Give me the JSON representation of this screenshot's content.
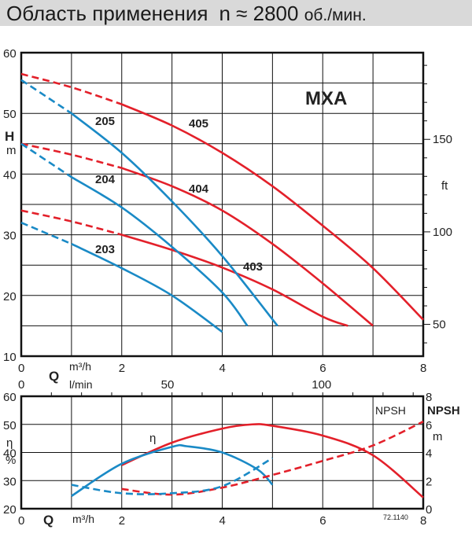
{
  "header": {
    "title": "Область применения",
    "speed": "n ≈ 2800",
    "speed_unit": "об./мин."
  },
  "colors": {
    "red": "#e3202a",
    "blue": "#1a8ac6",
    "grid": "#111"
  },
  "chart_data": [
    {
      "type": "line",
      "model_label": "MXA",
      "ylabel": "H",
      "ylabel_unit": "m",
      "y2label": "ft",
      "xlabel": "Q",
      "xunit": "m³/h",
      "x2unit": "l/min",
      "xlim": [
        0,
        8
      ],
      "ylim": [
        10,
        60
      ],
      "xticks": [
        0,
        2,
        4,
        6,
        8
      ],
      "yticks": [
        10,
        20,
        30,
        40,
        50,
        60
      ],
      "y2ticks": [
        50,
        100,
        150
      ],
      "x2ticks": [
        0,
        50,
        100
      ],
      "grid": true,
      "series": [
        {
          "name": "405",
          "color": "red",
          "dashed_until": 2,
          "points": [
            [
              0,
              56.5
            ],
            [
              1,
              54.3
            ],
            [
              2,
              51.5
            ],
            [
              3,
              48
            ],
            [
              4,
              43.5
            ],
            [
              5,
              38
            ],
            [
              6,
              31.5
            ],
            [
              7,
              24.5
            ],
            [
              8,
              16
            ]
          ]
        },
        {
          "name": "404",
          "color": "red",
          "dashed_until": 2,
          "points": [
            [
              0,
              45
            ],
            [
              1,
              43.2
            ],
            [
              2,
              41
            ],
            [
              3,
              38
            ],
            [
              4,
              34
            ],
            [
              5,
              28.5
            ],
            [
              6,
              22
            ],
            [
              7,
              15
            ]
          ]
        },
        {
          "name": "403",
          "color": "red",
          "dashed_until": 2,
          "points": [
            [
              0,
              34
            ],
            [
              1,
              32.2
            ],
            [
              2,
              30
            ],
            [
              3,
              27.5
            ],
            [
              4,
              24.6
            ],
            [
              5,
              21
            ],
            [
              6,
              16.5
            ],
            [
              6.5,
              15
            ]
          ]
        },
        {
          "name": "205",
          "color": "blue",
          "dashed_until": 1,
          "points": [
            [
              0,
              55.5
            ],
            [
              1,
              50
            ],
            [
              2,
              43.5
            ],
            [
              3,
              35.5
            ],
            [
              4,
              26.5
            ],
            [
              5.1,
              15
            ]
          ]
        },
        {
          "name": "204",
          "color": "blue",
          "dashed_until": 1,
          "points": [
            [
              0,
              45
            ],
            [
              1,
              39.5
            ],
            [
              2,
              34.5
            ],
            [
              3,
              28
            ],
            [
              4,
              20.5
            ],
            [
              4.5,
              15
            ]
          ]
        },
        {
          "name": "203",
          "color": "blue",
          "dashed_until": 1,
          "points": [
            [
              0,
              32
            ],
            [
              1,
              28.5
            ],
            [
              2,
              24.5
            ],
            [
              3,
              20
            ],
            [
              4,
              14
            ]
          ]
        }
      ]
    },
    {
      "type": "line",
      "ylabel": "η",
      "ylabel_unit": "%",
      "y2label": "NPSH",
      "y2unit": "m",
      "xlabel": "Q",
      "xunit": "m³/h",
      "npsh_tag": "NPSH",
      "eta_tag": "η",
      "code": "72.1140",
      "xlim": [
        0,
        8
      ],
      "ylim": [
        20,
        60
      ],
      "y2lim": [
        0,
        8
      ],
      "xticks": [
        0,
        2,
        4,
        6,
        8
      ],
      "yticks": [
        20,
        30,
        40,
        50,
        60
      ],
      "y2ticks": [
        0,
        2,
        4,
        6,
        8
      ],
      "grid": true,
      "series": [
        {
          "kind": "eta",
          "color": "red",
          "points": [
            [
              2,
              35.5
            ],
            [
              3,
              43.5
            ],
            [
              4,
              48.5
            ],
            [
              4.6,
              50
            ],
            [
              5,
              49.5
            ],
            [
              6,
              46
            ],
            [
              7,
              39
            ],
            [
              8,
              24
            ]
          ]
        },
        {
          "kind": "eta",
          "color": "blue",
          "points": [
            [
              1,
              24.5
            ],
            [
              2,
              36
            ],
            [
              3,
              42
            ],
            [
              3.3,
              42.2
            ],
            [
              4,
              40
            ],
            [
              4.7,
              34
            ],
            [
              5,
              28.5
            ]
          ]
        },
        {
          "kind": "npsh",
          "color": "red",
          "points": [
            [
              2,
              1.4
            ],
            [
              3,
              1.0
            ],
            [
              4,
              1.5
            ],
            [
              5,
              2.4
            ],
            [
              6,
              3.4
            ],
            [
              7,
              4.5
            ],
            [
              8,
              6.2
            ]
          ]
        },
        {
          "kind": "npsh",
          "color": "blue",
          "points": [
            [
              1,
              1.7
            ],
            [
              2,
              1.1
            ],
            [
              3,
              1.1
            ],
            [
              4,
              1.6
            ],
            [
              5,
              3.6
            ]
          ]
        }
      ]
    }
  ]
}
